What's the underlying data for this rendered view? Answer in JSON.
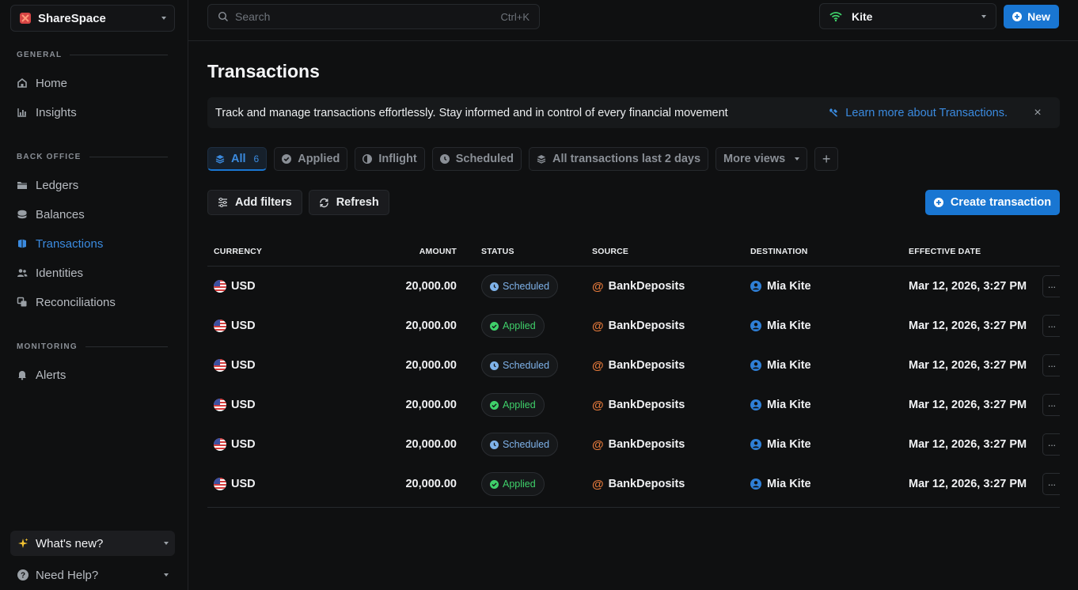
{
  "workspace": {
    "name": "ShareSpace"
  },
  "sidebar": {
    "sections": [
      {
        "label": "GENERAL",
        "items": [
          {
            "label": "Home",
            "icon": "home-icon"
          },
          {
            "label": "Insights",
            "icon": "chart-icon"
          }
        ]
      },
      {
        "label": "BACK OFFICE",
        "items": [
          {
            "label": "Ledgers",
            "icon": "folder-icon"
          },
          {
            "label": "Balances",
            "icon": "database-icon"
          },
          {
            "label": "Transactions",
            "icon": "transactions-icon",
            "active": true
          },
          {
            "label": "Identities",
            "icon": "users-icon"
          },
          {
            "label": "Reconciliations",
            "icon": "reconcile-icon"
          }
        ]
      },
      {
        "label": "MONITORING",
        "items": [
          {
            "label": "Alerts",
            "icon": "bell-icon"
          }
        ]
      }
    ],
    "whats_new": "What's new?",
    "need_help": "Need Help?"
  },
  "topbar": {
    "search_placeholder": "Search",
    "search_shortcut": "Ctrl+K",
    "org_name": "Kite",
    "new_label": "New"
  },
  "page": {
    "title": "Transactions",
    "banner_text": "Track and manage transactions effortlessly. Stay informed and in control of every financial movement",
    "banner_link": "Learn more about Transactions.",
    "banner_close": "×"
  },
  "views": {
    "all": {
      "label": "All",
      "count": "6"
    },
    "applied": "Applied",
    "inflight": "Inflight",
    "scheduled": "Scheduled",
    "last2": "All transactions last 2 days",
    "more": "More views",
    "add": "+"
  },
  "toolbar": {
    "add_filters": "Add filters",
    "refresh": "Refresh",
    "create": "Create transaction"
  },
  "table": {
    "columns": {
      "currency": "CURRENCY",
      "amount": "AMOUNT",
      "status": "STATUS",
      "source": "SOURCE",
      "destination": "DESTINATION",
      "date": "EFFECTIVE DATE"
    },
    "rows": [
      {
        "currency": "USD",
        "amount": "20,000.00",
        "status": "Scheduled",
        "source": "BankDeposits",
        "destination": "Mia Kite",
        "date": "Mar 12, 2026, 3:27 PM",
        "more": "···"
      },
      {
        "currency": "USD",
        "amount": "20,000.00",
        "status": "Applied",
        "source": "BankDeposits",
        "destination": "Mia Kite",
        "date": "Mar 12, 2026, 3:27 PM",
        "more": "···"
      },
      {
        "currency": "USD",
        "amount": "20,000.00",
        "status": "Scheduled",
        "source": "BankDeposits",
        "destination": "Mia Kite",
        "date": "Mar 12, 2026, 3:27 PM",
        "more": "···"
      },
      {
        "currency": "USD",
        "amount": "20,000.00",
        "status": "Applied",
        "source": "BankDeposits",
        "destination": "Mia Kite",
        "date": "Mar 12, 2026, 3:27 PM",
        "more": "···"
      },
      {
        "currency": "USD",
        "amount": "20,000.00",
        "status": "Scheduled",
        "source": "BankDeposits",
        "destination": "Mia Kite",
        "date": "Mar 12, 2026, 3:27 PM",
        "more": "···"
      },
      {
        "currency": "USD",
        "amount": "20,000.00",
        "status": "Applied",
        "source": "BankDeposits",
        "destination": "Mia Kite",
        "date": "Mar 12, 2026, 3:27 PM",
        "more": "···"
      }
    ]
  },
  "colors": {
    "accent": "#1976d2",
    "link": "#3b8be0",
    "applied": "#3fd06a",
    "scheduled": "#7fb3ea",
    "source_icon": "#e0773a",
    "background": "#0f1011"
  }
}
